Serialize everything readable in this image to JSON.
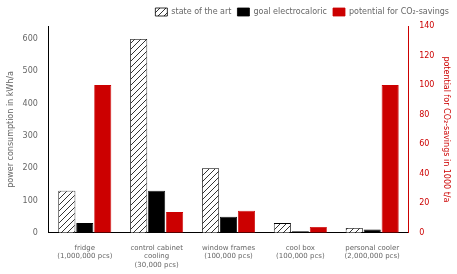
{
  "chart_data": {
    "type": "bar",
    "categories": [
      "fridge\n(1,000,000 pcs)",
      "control cabinet\ncooling\n(30,000 pcs)",
      "window frames\n(100,000 pcs)",
      "cool box\n(100,000 pcs)",
      "personal cooler\n(2,000,000 pcs)"
    ],
    "series": [
      {
        "name": "state of the art",
        "color": "#ffffff",
        "values": [
          130,
          600,
          200,
          30,
          15
        ]
      },
      {
        "name": "goal electrocaloric",
        "color": "#000000",
        "values": [
          30,
          130,
          50,
          5,
          10
        ]
      },
      {
        "name": "potential for CO₂-savings",
        "color": "#cc0000",
        "values": [
          100,
          14,
          15,
          4,
          100
        ],
        "axis": "y2"
      }
    ],
    "ylabel": "power consumption in kWh/a",
    "y2label": "potential for CO₂-savings in 1000 t/a",
    "ylim": [
      0,
      640
    ],
    "yticks": [
      0,
      100,
      200,
      300,
      400,
      500,
      600
    ],
    "y2lim": [
      0,
      140
    ],
    "y2ticks": [
      0,
      20,
      40,
      60,
      80,
      100,
      120,
      140
    ],
    "grid": false,
    "legend": "upper right"
  }
}
